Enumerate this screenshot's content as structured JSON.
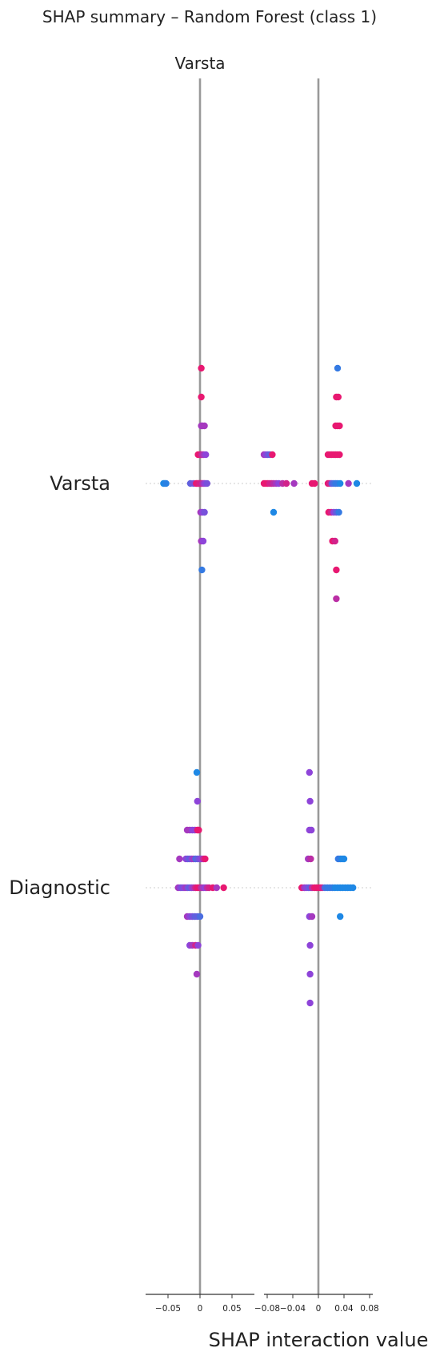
{
  "chart_data": {
    "type": "scatter",
    "title": "SHAP summary – Random Forest (class 1)",
    "panel_title": "Varsta",
    "xlabel": "SHAP interaction value",
    "features": [
      "Varsta",
      "Diagnostic"
    ],
    "grid": false,
    "colors": {
      "low": "#1e88e5",
      "mid": "#8e44d9",
      "high": "#ff0d57",
      "axis_line": "#999999",
      "guide": "#cccccc"
    },
    "panels": [
      {
        "name": "left",
        "xlim": [
          -0.085,
          0.085
        ],
        "xticks": [
          -0.05,
          0,
          0.05
        ],
        "xtick_labels": [
          "−0.05",
          "0",
          "0.05"
        ]
      },
      {
        "name": "right",
        "xlim": [
          -0.085,
          0.085
        ],
        "xticks": [
          -0.08,
          -0.04,
          0,
          0.04,
          0.08
        ],
        "xtick_labels": [
          "−0.08",
          "−0.04",
          "0",
          "0.04",
          "0.08"
        ]
      }
    ],
    "points": {
      "Varsta": {
        "left": [
          {
            "x": 0.002,
            "layer": -4,
            "c": 0.9
          },
          {
            "x": 0.002,
            "layer": -3,
            "c": 0.9
          },
          {
            "x": 0.002,
            "layer": -2,
            "c": 0.6
          },
          {
            "x": 0.004,
            "layer": -2,
            "c": 0.6
          },
          {
            "x": 0.007,
            "layer": -2,
            "c": 0.6
          },
          {
            "x": -0.003,
            "layer": -1,
            "c": 0.9
          },
          {
            "x": 0.0,
            "layer": -1,
            "c": 0.9
          },
          {
            "x": 0.002,
            "layer": -1,
            "c": 0.8
          },
          {
            "x": 0.004,
            "layer": -1,
            "c": 0.7
          },
          {
            "x": 0.006,
            "layer": -1,
            "c": 0.6
          },
          {
            "x": 0.009,
            "layer": -1,
            "c": 0.5
          },
          {
            "x": -0.057,
            "layer": 0,
            "c": 0.0
          },
          {
            "x": -0.055,
            "layer": 0,
            "c": 0.0
          },
          {
            "x": -0.053,
            "layer": 0,
            "c": 0.05
          },
          {
            "x": -0.015,
            "layer": 0,
            "c": 0.3
          },
          {
            "x": -0.01,
            "layer": 0,
            "c": 0.4
          },
          {
            "x": -0.006,
            "layer": 0,
            "c": 0.9
          },
          {
            "x": -0.004,
            "layer": 0,
            "c": 0.9
          },
          {
            "x": -0.002,
            "layer": 0,
            "c": 0.85
          },
          {
            "x": 0.0,
            "layer": 0,
            "c": 0.8
          },
          {
            "x": 0.002,
            "layer": 0,
            "c": 0.8
          },
          {
            "x": 0.004,
            "layer": 0,
            "c": 0.7
          },
          {
            "x": 0.006,
            "layer": 0,
            "c": 0.6
          },
          {
            "x": 0.008,
            "layer": 0,
            "c": 0.5
          },
          {
            "x": 0.011,
            "layer": 0,
            "c": 0.4
          },
          {
            "x": 0.001,
            "layer": 1,
            "c": 0.6
          },
          {
            "x": 0.004,
            "layer": 1,
            "c": 0.5
          },
          {
            "x": 0.007,
            "layer": 1,
            "c": 0.4
          },
          {
            "x": 0.002,
            "layer": 2,
            "c": 0.6
          },
          {
            "x": 0.005,
            "layer": 2,
            "c": 0.5
          },
          {
            "x": 0.003,
            "layer": 3,
            "c": 0.1
          }
        ],
        "right": [
          {
            "x": 0.03,
            "layer": -4,
            "c": 0.1
          },
          {
            "x": 0.028,
            "layer": -3,
            "c": 0.9
          },
          {
            "x": 0.031,
            "layer": -3,
            "c": 0.9
          },
          {
            "x": 0.027,
            "layer": -2,
            "c": 0.9
          },
          {
            "x": 0.03,
            "layer": -2,
            "c": 0.9
          },
          {
            "x": 0.033,
            "layer": -2,
            "c": 0.9
          },
          {
            "x": -0.085,
            "layer": -1,
            "c": 0.6
          },
          {
            "x": -0.082,
            "layer": -1,
            "c": 0.5
          },
          {
            "x": -0.079,
            "layer": -1,
            "c": 0.4
          },
          {
            "x": -0.076,
            "layer": -1,
            "c": 0.3
          },
          {
            "x": -0.072,
            "layer": -1,
            "c": 0.9
          },
          {
            "x": 0.015,
            "layer": -1,
            "c": 0.9
          },
          {
            "x": 0.018,
            "layer": -1,
            "c": 0.9
          },
          {
            "x": 0.021,
            "layer": -1,
            "c": 0.9
          },
          {
            "x": 0.024,
            "layer": -1,
            "c": 0.9
          },
          {
            "x": 0.027,
            "layer": -1,
            "c": 0.9
          },
          {
            "x": 0.03,
            "layer": -1,
            "c": 0.9
          },
          {
            "x": 0.033,
            "layer": -1,
            "c": 0.9
          },
          {
            "x": -0.085,
            "layer": 0,
            "c": 0.9
          },
          {
            "x": -0.082,
            "layer": 0,
            "c": 0.9
          },
          {
            "x": -0.079,
            "layer": 0,
            "c": 0.9
          },
          {
            "x": -0.076,
            "layer": 0,
            "c": 0.8
          },
          {
            "x": -0.073,
            "layer": 0,
            "c": 0.8
          },
          {
            "x": -0.07,
            "layer": 0,
            "c": 0.7
          },
          {
            "x": -0.066,
            "layer": 0,
            "c": 0.6
          },
          {
            "x": -0.062,
            "layer": 0,
            "c": 0.5
          },
          {
            "x": -0.056,
            "layer": 0,
            "c": 0.7
          },
          {
            "x": -0.05,
            "layer": 0,
            "c": 0.8
          },
          {
            "x": -0.038,
            "layer": 0,
            "c": 0.6
          },
          {
            "x": -0.01,
            "layer": 0,
            "c": 0.9
          },
          {
            "x": -0.006,
            "layer": 0,
            "c": 0.9
          },
          {
            "x": 0.015,
            "layer": 0,
            "c": 0.9
          },
          {
            "x": 0.018,
            "layer": 0,
            "c": 0.8
          },
          {
            "x": 0.021,
            "layer": 0,
            "c": 0.3
          },
          {
            "x": 0.024,
            "layer": 0,
            "c": 0.2
          },
          {
            "x": 0.027,
            "layer": 0,
            "c": 0.1
          },
          {
            "x": 0.03,
            "layer": 0,
            "c": 0.1
          },
          {
            "x": 0.034,
            "layer": 0,
            "c": 0.0
          },
          {
            "x": 0.047,
            "layer": 0,
            "c": 0.6
          },
          {
            "x": 0.06,
            "layer": 0,
            "c": 0.0
          },
          {
            "x": -0.07,
            "layer": 1,
            "c": 0.0
          },
          {
            "x": 0.016,
            "layer": 1,
            "c": 0.9
          },
          {
            "x": 0.02,
            "layer": 1,
            "c": 0.8
          },
          {
            "x": 0.024,
            "layer": 1,
            "c": 0.5
          },
          {
            "x": 0.028,
            "layer": 1,
            "c": 0.3
          },
          {
            "x": 0.032,
            "layer": 1,
            "c": 0.1
          },
          {
            "x": 0.022,
            "layer": 2,
            "c": 0.9
          },
          {
            "x": 0.026,
            "layer": 2,
            "c": 0.8
          },
          {
            "x": 0.028,
            "layer": 3,
            "c": 0.9
          },
          {
            "x": 0.028,
            "layer": 4,
            "c": 0.7
          }
        ]
      },
      "Diagnostic": {
        "left": [
          {
            "x": -0.005,
            "layer": -4,
            "c": 0.0
          },
          {
            "x": -0.004,
            "layer": -3,
            "c": 0.5
          },
          {
            "x": -0.02,
            "layer": -2,
            "c": 0.6
          },
          {
            "x": -0.016,
            "layer": -2,
            "c": 0.6
          },
          {
            "x": -0.012,
            "layer": -2,
            "c": 0.5
          },
          {
            "x": -0.008,
            "layer": -2,
            "c": 0.5
          },
          {
            "x": -0.004,
            "layer": -2,
            "c": 0.9
          },
          {
            "x": -0.002,
            "layer": -2,
            "c": 0.9
          },
          {
            "x": -0.032,
            "layer": -1,
            "c": 0.6
          },
          {
            "x": -0.022,
            "layer": -1,
            "c": 0.5
          },
          {
            "x": -0.019,
            "layer": -1,
            "c": 0.4
          },
          {
            "x": -0.016,
            "layer": -1,
            "c": 0.3
          },
          {
            "x": -0.013,
            "layer": -1,
            "c": 0.5
          },
          {
            "x": -0.01,
            "layer": -1,
            "c": 0.6
          },
          {
            "x": -0.007,
            "layer": -1,
            "c": 0.2
          },
          {
            "x": -0.004,
            "layer": -1,
            "c": 0.3
          },
          {
            "x": -0.001,
            "layer": -1,
            "c": 0.4
          },
          {
            "x": 0.002,
            "layer": -1,
            "c": 0.5
          },
          {
            "x": 0.005,
            "layer": -1,
            "c": 0.7
          },
          {
            "x": 0.008,
            "layer": -1,
            "c": 0.9
          },
          {
            "x": -0.034,
            "layer": 0,
            "c": 0.6
          },
          {
            "x": -0.031,
            "layer": 0,
            "c": 0.5
          },
          {
            "x": -0.028,
            "layer": 0,
            "c": 0.4
          },
          {
            "x": -0.025,
            "layer": 0,
            "c": 0.5
          },
          {
            "x": -0.022,
            "layer": 0,
            "c": 0.6
          },
          {
            "x": -0.019,
            "layer": 0,
            "c": 0.4
          },
          {
            "x": -0.016,
            "layer": 0,
            "c": 0.3
          },
          {
            "x": -0.013,
            "layer": 0,
            "c": 0.5
          },
          {
            "x": -0.01,
            "layer": 0,
            "c": 0.6
          },
          {
            "x": -0.007,
            "layer": 0,
            "c": 0.8
          },
          {
            "x": -0.004,
            "layer": 0,
            "c": 0.9
          },
          {
            "x": -0.001,
            "layer": 0,
            "c": 0.9
          },
          {
            "x": 0.002,
            "layer": 0,
            "c": 0.7
          },
          {
            "x": 0.005,
            "layer": 0,
            "c": 0.6
          },
          {
            "x": 0.008,
            "layer": 0,
            "c": 0.5
          },
          {
            "x": 0.011,
            "layer": 0,
            "c": 0.7
          },
          {
            "x": 0.014,
            "layer": 0,
            "c": 0.8
          },
          {
            "x": 0.02,
            "layer": 0,
            "c": 0.9
          },
          {
            "x": 0.026,
            "layer": 0,
            "c": 0.6
          },
          {
            "x": 0.037,
            "layer": 0,
            "c": 0.9
          },
          {
            "x": -0.02,
            "layer": 1,
            "c": 0.6
          },
          {
            "x": -0.016,
            "layer": 1,
            "c": 0.5
          },
          {
            "x": -0.012,
            "layer": 1,
            "c": 0.4
          },
          {
            "x": -0.008,
            "layer": 1,
            "c": 0.3
          },
          {
            "x": -0.004,
            "layer": 1,
            "c": 0.3
          },
          {
            "x": 0.0,
            "layer": 1,
            "c": 0.2
          },
          {
            "x": -0.016,
            "layer": 2,
            "c": 0.5
          },
          {
            "x": -0.012,
            "layer": 2,
            "c": 0.6
          },
          {
            "x": -0.007,
            "layer": 2,
            "c": 0.8
          },
          {
            "x": -0.003,
            "layer": 2,
            "c": 0.5
          },
          {
            "x": -0.005,
            "layer": 3,
            "c": 0.6
          }
        ],
        "right": [
          {
            "x": -0.014,
            "layer": -4,
            "c": 0.5
          },
          {
            "x": -0.013,
            "layer": -3,
            "c": 0.5
          },
          {
            "x": -0.014,
            "layer": -2,
            "c": 0.5
          },
          {
            "x": -0.011,
            "layer": -2,
            "c": 0.5
          },
          {
            "x": -0.016,
            "layer": -1,
            "c": 0.6
          },
          {
            "x": -0.012,
            "layer": -1,
            "c": 0.7
          },
          {
            "x": 0.031,
            "layer": -1,
            "c": 0.1
          },
          {
            "x": 0.034,
            "layer": -1,
            "c": 0.1
          },
          {
            "x": 0.037,
            "layer": -1,
            "c": 0.0
          },
          {
            "x": 0.04,
            "layer": -1,
            "c": 0.0
          },
          {
            "x": -0.026,
            "layer": 0,
            "c": 0.9
          },
          {
            "x": -0.022,
            "layer": 0,
            "c": 0.6
          },
          {
            "x": -0.019,
            "layer": 0,
            "c": 0.5
          },
          {
            "x": -0.016,
            "layer": 0,
            "c": 0.4
          },
          {
            "x": -0.013,
            "layer": 0,
            "c": 0.3
          },
          {
            "x": -0.01,
            "layer": 0,
            "c": 0.7
          },
          {
            "x": -0.006,
            "layer": 0,
            "c": 0.9
          },
          {
            "x": -0.003,
            "layer": 0,
            "c": 0.9
          },
          {
            "x": 0.0,
            "layer": 0,
            "c": 0.9
          },
          {
            "x": 0.003,
            "layer": 0,
            "c": 0.9
          },
          {
            "x": 0.006,
            "layer": 0,
            "c": 0.8
          },
          {
            "x": 0.01,
            "layer": 0,
            "c": 0.2
          },
          {
            "x": 0.014,
            "layer": 0,
            "c": 0.1
          },
          {
            "x": 0.018,
            "layer": 0,
            "c": 0.1
          },
          {
            "x": 0.022,
            "layer": 0,
            "c": 0.1
          },
          {
            "x": 0.026,
            "layer": 0,
            "c": 0.0
          },
          {
            "x": 0.03,
            "layer": 0,
            "c": 0.0
          },
          {
            "x": 0.034,
            "layer": 0,
            "c": 0.0
          },
          {
            "x": 0.038,
            "layer": 0,
            "c": 0.0
          },
          {
            "x": 0.042,
            "layer": 0,
            "c": 0.0
          },
          {
            "x": 0.046,
            "layer": 0,
            "c": 0.0
          },
          {
            "x": 0.05,
            "layer": 0,
            "c": 0.0
          },
          {
            "x": 0.054,
            "layer": 0,
            "c": 0.0
          },
          {
            "x": -0.014,
            "layer": 1,
            "c": 0.5
          },
          {
            "x": -0.01,
            "layer": 1,
            "c": 0.6
          },
          {
            "x": 0.034,
            "layer": 1,
            "c": 0.0
          },
          {
            "x": -0.013,
            "layer": 2,
            "c": 0.5
          },
          {
            "x": -0.013,
            "layer": 3,
            "c": 0.5
          },
          {
            "x": -0.013,
            "layer": 4,
            "c": 0.5
          }
        ]
      }
    }
  }
}
